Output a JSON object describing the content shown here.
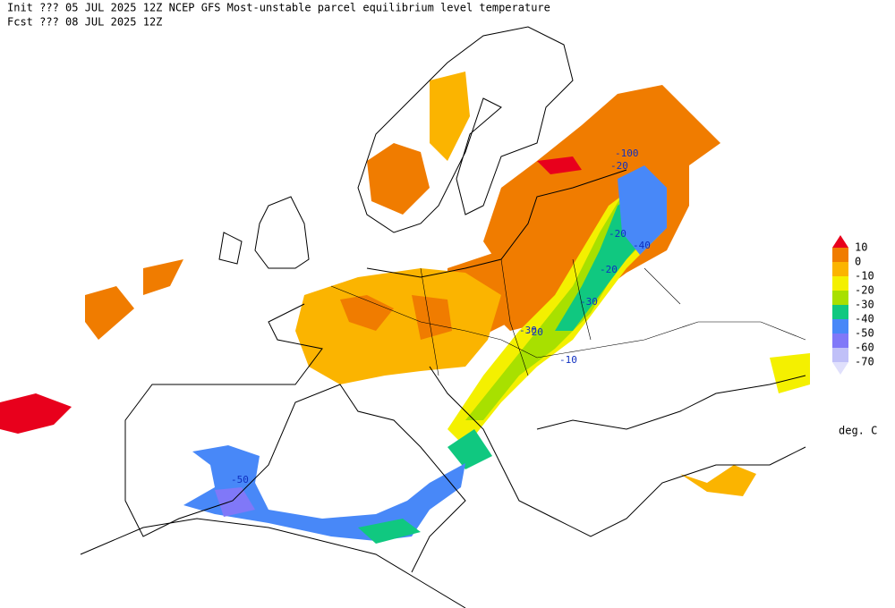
{
  "header": {
    "line1": "Init  ??? 05 JUL 2025 12Z   NCEP GFS Most-unstable parcel equilibrium level temperature",
    "line2": "Fcst ??? 08 JUL 2025 12Z"
  },
  "legend": {
    "labels": [
      "10",
      "0",
      "-10",
      "-20",
      "-30",
      "-40",
      "-50",
      "-60",
      "-70"
    ],
    "colors": [
      "#e8001c",
      "#f07c00",
      "#fbb400",
      "#f4f000",
      "#a8e000",
      "#10c880",
      "#4888f8",
      "#8078f8",
      "#c0c0f8",
      "#e0e0fc"
    ],
    "unit": "deg. C"
  },
  "contour_labels": [
    "-100",
    "-20",
    "-20",
    "-30",
    "-40",
    "-20",
    "-30",
    "-20",
    "-10",
    "-50"
  ]
}
